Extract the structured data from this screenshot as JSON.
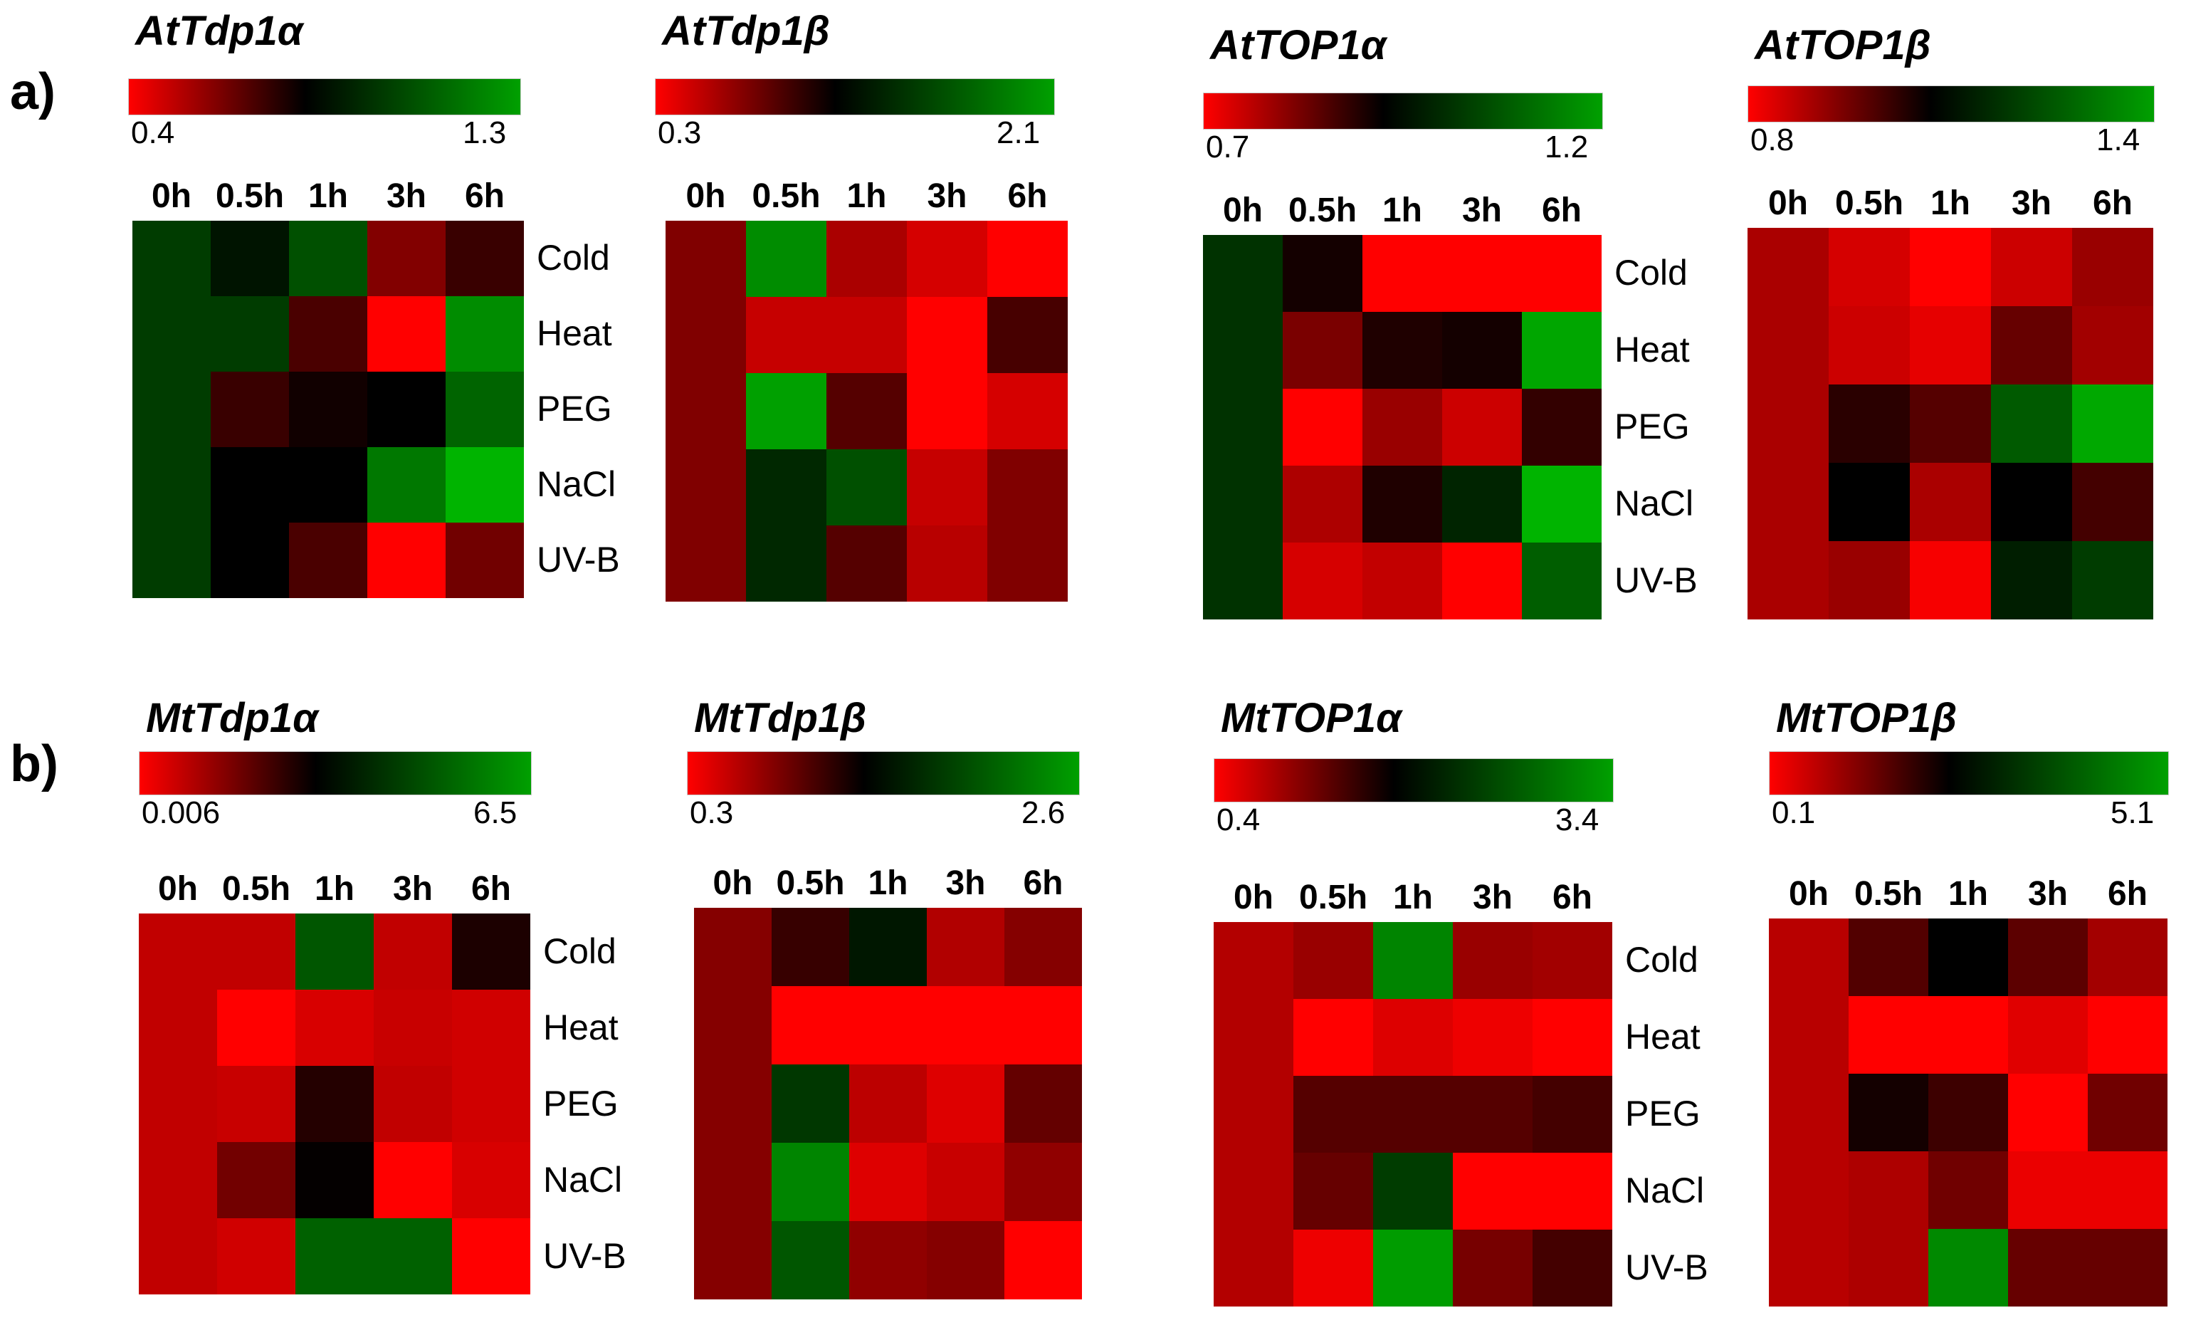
{
  "panels": [
    {
      "label": "a)",
      "row": 0
    },
    {
      "label": "b)",
      "row": 1
    }
  ],
  "chart_data": [
    {
      "type": "heatmap",
      "title": "AtTdp1α",
      "panel": "a)",
      "legend": {
        "min": "0.4",
        "max": "1.3",
        "min_value": 0.4,
        "max_value": 1.3
      },
      "x": [
        "0h",
        "0.5h",
        "1h",
        "3h",
        "6h"
      ],
      "y": [
        "Cold",
        "Heat",
        "PEG",
        "NaCl",
        "UV-B"
      ],
      "values": [
        [
          1.0,
          0.9,
          1.05,
          0.62,
          0.75
        ],
        [
          1.0,
          1.0,
          0.72,
          0.4,
          1.2
        ],
        [
          1.0,
          0.75,
          0.82,
          0.85,
          1.1
        ],
        [
          1.0,
          0.85,
          0.85,
          1.15,
          1.3
        ],
        [
          1.0,
          0.85,
          0.72,
          0.4,
          0.65
        ]
      ]
    },
    {
      "type": "heatmap",
      "title": "AtTdp1β",
      "panel": "a)",
      "legend": {
        "min": "0.3",
        "max": "2.1",
        "min_value": 0.3,
        "max_value": 2.1
      },
      "x": [
        "0h",
        "0.5h",
        "1h",
        "3h",
        "6h"
      ],
      "y": [
        "Cold",
        "Heat",
        "PEG",
        "NaCl",
        "UV-B"
      ],
      "values": [
        [
          0.75,
          1.9,
          0.6,
          0.45,
          0.3
        ],
        [
          0.75,
          0.5,
          0.5,
          0.3,
          0.95
        ],
        [
          0.75,
          2.0,
          0.9,
          0.3,
          0.45
        ],
        [
          0.75,
          1.4,
          1.6,
          0.5,
          0.75
        ],
        [
          0.75,
          1.4,
          0.9,
          0.55,
          0.75
        ]
      ]
    },
    {
      "type": "heatmap",
      "title": "AtTOP1α",
      "panel": "a)",
      "legend": {
        "min": "0.7",
        "max": "1.2",
        "min_value": 0.7,
        "max_value": 1.2
      },
      "x": [
        "0h",
        "0.5h",
        "1h",
        "3h",
        "6h"
      ],
      "y": [
        "Cold",
        "Heat",
        "PEG",
        "NaCl",
        "UV-B"
      ],
      "values": [
        [
          1.02,
          0.93,
          0.7,
          0.7,
          0.7
        ],
        [
          1.02,
          0.83,
          0.92,
          0.93,
          1.18
        ],
        [
          1.02,
          0.7,
          0.8,
          0.75,
          0.9
        ],
        [
          1.02,
          0.78,
          0.92,
          1.0,
          1.2
        ],
        [
          1.02,
          0.74,
          0.76,
          0.7,
          1.08
        ]
      ]
    },
    {
      "type": "heatmap",
      "title": "AtTOP1β",
      "panel": "a)",
      "legend": {
        "min": "0.8",
        "max": "1.4",
        "min_value": 0.8,
        "max_value": 1.4
      },
      "x": [
        "0h",
        "0.5h",
        "1h",
        "3h",
        "6h"
      ],
      "y": [
        "Cold",
        "Heat",
        "PEG",
        "NaCl",
        "UV-B"
      ],
      "values": [
        [
          0.9,
          0.85,
          0.8,
          0.86,
          0.92
        ],
        [
          0.9,
          0.86,
          0.83,
          0.98,
          0.91
        ],
        [
          0.9,
          1.05,
          1.0,
          1.25,
          1.38
        ],
        [
          0.9,
          1.1,
          0.9,
          1.1,
          1.02
        ],
        [
          0.9,
          0.92,
          0.81,
          1.15,
          1.2
        ]
      ]
    },
    {
      "type": "heatmap",
      "title": "MtTdp1α",
      "panel": "b)",
      "legend": {
        "min": "0.006",
        "max": "6.5",
        "min_value": 0.006,
        "max_value": 6.5
      },
      "x": [
        "0h",
        "0.5h",
        "1h",
        "3h",
        "6h"
      ],
      "y": [
        "Cold",
        "Heat",
        "PEG",
        "NaCl",
        "UV-B"
      ],
      "values": [
        [
          0.8,
          0.8,
          4.8,
          0.8,
          2.9
        ],
        [
          0.8,
          0.01,
          0.5,
          0.7,
          0.6
        ],
        [
          0.8,
          0.7,
          2.8,
          0.8,
          0.6
        ],
        [
          0.8,
          1.8,
          3.2,
          0.01,
          0.5
        ],
        [
          0.8,
          0.6,
          5.0,
          5.0,
          0.01
        ]
      ]
    },
    {
      "type": "heatmap",
      "title": "MtTdp1β",
      "panel": "b)",
      "legend": {
        "min": "0.3",
        "max": "2.6",
        "min_value": 0.3,
        "max_value": 2.6
      },
      "x": [
        "0h",
        "0.5h",
        "1h",
        "3h",
        "6h"
      ],
      "y": [
        "Cold",
        "Heat",
        "PEG",
        "NaCl",
        "UV-B"
      ],
      "values": [
        [
          0.85,
          1.2,
          1.6,
          0.65,
          0.85
        ],
        [
          0.85,
          0.3,
          0.3,
          0.3,
          0.3
        ],
        [
          0.85,
          1.8,
          0.6,
          0.45,
          1.0
        ],
        [
          0.85,
          2.3,
          0.45,
          0.55,
          0.8
        ],
        [
          0.85,
          2.0,
          0.8,
          0.85,
          0.3
        ]
      ]
    },
    {
      "type": "heatmap",
      "title": "MtTOP1α",
      "panel": "b)",
      "legend": {
        "min": "0.4",
        "max": "3.4",
        "min_value": 0.4,
        "max_value": 3.4
      },
      "x": [
        "0h",
        "0.5h",
        "1h",
        "3h",
        "6h"
      ],
      "y": [
        "Cold",
        "Heat",
        "PEG",
        "NaCl",
        "UV-B"
      ],
      "values": [
        [
          0.85,
          1.0,
          3.0,
          1.0,
          0.95
        ],
        [
          0.85,
          0.4,
          0.6,
          0.5,
          0.4
        ],
        [
          0.85,
          1.4,
          1.4,
          1.4,
          1.5
        ],
        [
          0.85,
          1.3,
          2.4,
          0.4,
          0.4
        ],
        [
          0.85,
          0.5,
          3.2,
          1.2,
          1.5
        ]
      ]
    },
    {
      "type": "heatmap",
      "title": "MtTOP1β",
      "panel": "b)",
      "legend": {
        "min": "0.1",
        "max": "5.1",
        "min_value": 0.1,
        "max_value": 5.1
      },
      "x": [
        "0h",
        "0.5h",
        "1h",
        "3h",
        "6h"
      ],
      "y": [
        "Cold",
        "Heat",
        "PEG",
        "NaCl",
        "UV-B"
      ],
      "values": [
        [
          0.8,
          1.8,
          2.6,
          1.7,
          1.0
        ],
        [
          0.8,
          0.1,
          0.1,
          0.4,
          0.1
        ],
        [
          0.8,
          2.4,
          2.0,
          0.1,
          1.5
        ],
        [
          0.8,
          0.9,
          1.5,
          0.3,
          0.3
        ],
        [
          0.8,
          0.9,
          4.5,
          1.6,
          1.6
        ]
      ]
    }
  ]
}
